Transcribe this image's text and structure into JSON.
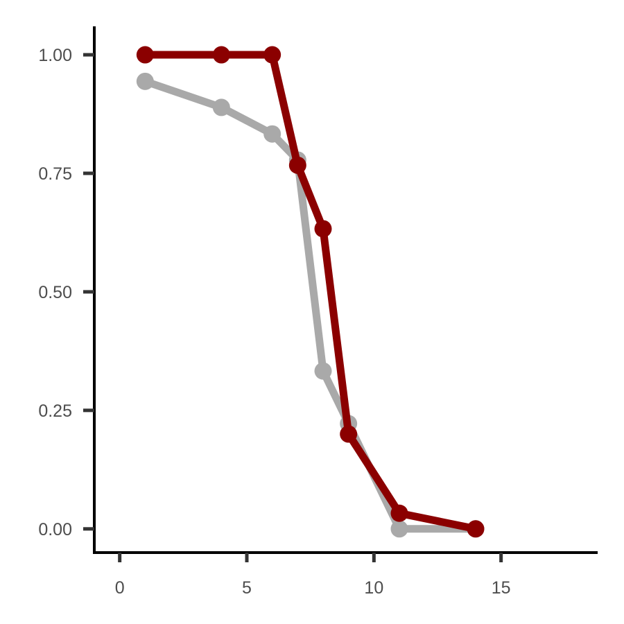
{
  "chart_data": {
    "type": "line",
    "title": "",
    "xlabel": "",
    "ylabel": "",
    "xlim": [
      -1,
      18.8
    ],
    "ylim": [
      -0.05,
      1.06
    ],
    "x_ticks": [
      0,
      5,
      10,
      15
    ],
    "x_tick_labels": [
      "0",
      "5",
      "10",
      "15"
    ],
    "y_ticks": [
      0,
      0.25,
      0.5,
      0.75,
      1.0
    ],
    "y_tick_labels": [
      "0.00",
      "0.25",
      "0.50",
      "0.75",
      "1.00"
    ],
    "grid": false,
    "legend": "none",
    "series": [
      {
        "color": "#a9a9a9",
        "points": [
          {
            "x": 1,
            "y": 0.944
          },
          {
            "x": 4,
            "y": 0.889
          },
          {
            "x": 6,
            "y": 0.833
          },
          {
            "x": 7,
            "y": 0.778
          },
          {
            "x": 8,
            "y": 0.333
          },
          {
            "x": 9,
            "y": 0.222
          },
          {
            "x": 11,
            "y": 0.0
          },
          {
            "x": 14,
            "y": 0.0
          }
        ]
      },
      {
        "color": "#8b0000",
        "points": [
          {
            "x": 1,
            "y": 1.0
          },
          {
            "x": 4,
            "y": 1.0
          },
          {
            "x": 6,
            "y": 1.0
          },
          {
            "x": 7,
            "y": 0.767
          },
          {
            "x": 8,
            "y": 0.633
          },
          {
            "x": 9,
            "y": 0.2
          },
          {
            "x": 11,
            "y": 0.033
          },
          {
            "x": 14,
            "y": 0.0
          }
        ]
      }
    ]
  }
}
